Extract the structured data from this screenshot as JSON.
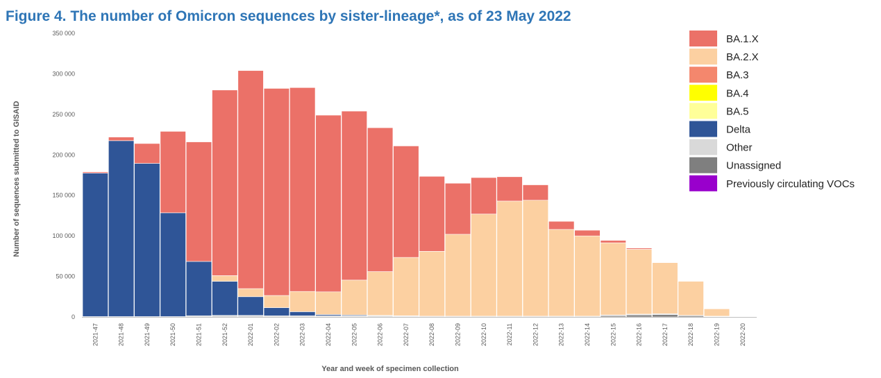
{
  "chart_data": {
    "type": "bar",
    "stacked": true,
    "title": "Figure 4. The number of Omicron sequences by sister-lineage*, as of 23 May 2022",
    "xlabel": "Year and week of specimen collection",
    "ylabel": "Number of sequences submitted to GISAID",
    "ylim": [
      0,
      350000
    ],
    "yticks": [
      0,
      50000,
      100000,
      150000,
      200000,
      250000,
      300000,
      350000
    ],
    "ytick_labels": [
      "0",
      "50 000",
      "100 000",
      "150 000",
      "200 000",
      "250 000",
      "300 000",
      "350 000"
    ],
    "grid": false,
    "legend_position": "right",
    "categories": [
      "2021-47",
      "2021-48",
      "2021-49",
      "2021-50",
      "2021-51",
      "2021-52",
      "2022-01",
      "2022-02",
      "2022-03",
      "2022-04",
      "2022-05",
      "2022-06",
      "2022-07",
      "2022-08",
      "2022-09",
      "2022-10",
      "2022-11",
      "2022-12",
      "2022-13",
      "2022-14",
      "2022-15",
      "2022-16",
      "2022-17",
      "2022-18",
      "2022-19",
      "2022-20"
    ],
    "series": [
      {
        "name": "Previously circulating VOCs",
        "color": "#9900cc",
        "values": [
          0,
          0,
          0,
          0,
          0,
          0,
          0,
          0,
          0,
          0,
          0,
          0,
          0,
          0,
          0,
          0,
          0,
          0,
          0,
          0,
          0,
          0,
          0,
          0,
          0,
          0
        ]
      },
      {
        "name": "Unassigned",
        "color": "#7f7f7f",
        "values": [
          0,
          0,
          0,
          0,
          0,
          0,
          0,
          0,
          0,
          0,
          0,
          0,
          0,
          0,
          0,
          0,
          0,
          0,
          0,
          0,
          1500,
          2500,
          3000,
          1500,
          500,
          0
        ]
      },
      {
        "name": "Other",
        "color": "#d9d9d9",
        "values": [
          500,
          500,
          500,
          500,
          1500,
          2000,
          2000,
          1500,
          1500,
          1500,
          1500,
          1500,
          1000,
          1000,
          1000,
          1000,
          1000,
          1000,
          1000,
          1000,
          1000,
          1000,
          1000,
          500,
          500,
          0
        ]
      },
      {
        "name": "Delta",
        "color": "#2f5597",
        "values": [
          177000,
          217000,
          189000,
          128000,
          67000,
          42000,
          23000,
          10000,
          5000,
          1500,
          1000,
          500,
          500,
          0,
          0,
          0,
          0,
          0,
          0,
          0,
          0,
          0,
          0,
          0,
          0,
          0
        ]
      },
      {
        "name": "BA.5",
        "color": "#ffff99",
        "values": [
          0,
          0,
          0,
          0,
          0,
          0,
          0,
          0,
          0,
          0,
          0,
          0,
          0,
          0,
          0,
          0,
          0,
          0,
          0,
          0,
          0,
          0,
          0,
          0,
          0,
          0
        ]
      },
      {
        "name": "BA.4",
        "color": "#ffff00",
        "values": [
          0,
          0,
          0,
          0,
          0,
          0,
          0,
          0,
          0,
          0,
          0,
          0,
          0,
          0,
          0,
          0,
          0,
          0,
          0,
          0,
          0,
          0,
          0,
          0,
          0,
          0
        ]
      },
      {
        "name": "BA.3",
        "color": "#f4876d",
        "values": [
          0,
          0,
          0,
          0,
          0,
          0,
          0,
          0,
          0,
          0,
          0,
          0,
          0,
          0,
          0,
          0,
          0,
          0,
          0,
          0,
          0,
          0,
          0,
          0,
          0,
          0
        ]
      },
      {
        "name": "BA.2.X",
        "color": "#fcd0a1",
        "values": [
          0,
          0,
          0,
          0,
          0,
          7000,
          10000,
          15000,
          25000,
          28000,
          43000,
          54000,
          72000,
          80000,
          101000,
          126000,
          142000,
          143000,
          107000,
          99000,
          89000,
          80000,
          63000,
          42000,
          9000,
          0
        ]
      },
      {
        "name": "BA.1.X",
        "color": "#eb7168",
        "values": [
          1500,
          4500,
          24500,
          100500,
          147500,
          229000,
          269000,
          255500,
          251500,
          218000,
          208500,
          177500,
          137500,
          92500,
          63000,
          45000,
          30000,
          19000,
          10000,
          7000,
          3000,
          1500,
          500,
          0,
          0,
          0
        ]
      }
    ],
    "legend": [
      "BA.1.X",
      "BA.2.X",
      "BA.3",
      "BA.4",
      "BA.5",
      "Delta",
      "Other",
      "Unassigned",
      "Previously circulating VOCs"
    ]
  }
}
